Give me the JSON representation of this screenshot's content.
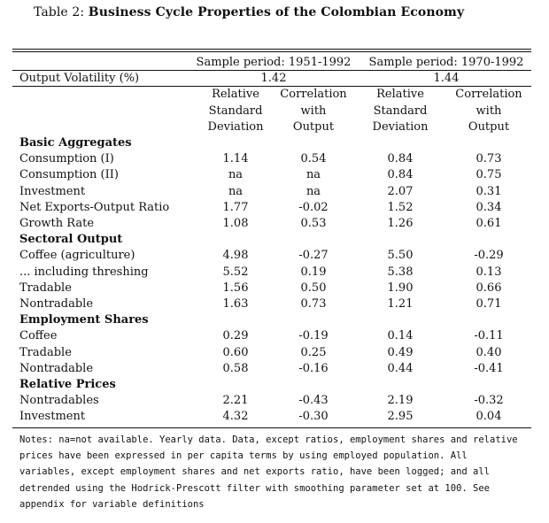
{
  "caption": {
    "label": "Table 2:",
    "title": "Business Cycle Properties of the Colombian Economy"
  },
  "header": {
    "period1": "Sample period: 1951-1992",
    "period2": "Sample period: 1970-1992",
    "volatility_label": "Output Volatility (%)",
    "volatility1": "1.42",
    "volatility2": "1.44",
    "col_rsd": [
      "Relative",
      "Standard",
      "Deviation"
    ],
    "col_corr": [
      "Correlation",
      "with",
      "Output"
    ]
  },
  "sections": [
    {
      "title": "Basic Aggregates",
      "rows": [
        [
          "Consumption (I)",
          "1.14",
          "0.54",
          "0.84",
          "0.73"
        ],
        [
          "Consumption (II)",
          "na",
          "na",
          "0.84",
          "0.75"
        ],
        [
          "Investment",
          "na",
          "na",
          "2.07",
          "0.31"
        ],
        [
          "Net Exports-Output Ratio",
          "1.77",
          "-0.02",
          "1.52",
          "0.34"
        ],
        [
          "Growth Rate",
          "1.08",
          "0.53",
          "1.26",
          "0.61"
        ]
      ]
    },
    {
      "title": "Sectoral Output",
      "rows": [
        [
          "Coffee (agriculture)",
          "4.98",
          "-0.27",
          "5.50",
          "-0.29"
        ],
        [
          "... including threshing",
          "5.52",
          "0.19",
          "5.38",
          "0.13"
        ],
        [
          "Tradable",
          "1.56",
          "0.50",
          "1.90",
          "0.66"
        ],
        [
          "Nontradable",
          "1.63",
          "0.73",
          "1.21",
          "0.71"
        ]
      ]
    },
    {
      "title": "Employment Shares",
      "rows": [
        [
          "Coffee",
          "0.29",
          "-0.19",
          "0.14",
          "-0.11"
        ],
        [
          "Tradable",
          "0.60",
          "0.25",
          "0.49",
          "0.40"
        ],
        [
          "Nontradable",
          "0.58",
          "-0.16",
          "0.44",
          "-0.41"
        ]
      ]
    },
    {
      "title": "Relative Prices",
      "rows": [
        [
          "Nontradables",
          "2.21",
          "-0.43",
          "2.19",
          "-0.32"
        ],
        [
          "Investment",
          "4.32",
          "-0.30",
          "2.95",
          "0.04"
        ]
      ]
    }
  ],
  "notes": "Notes: na=not available. Yearly data. Data, except ratios, employment shares and relative prices have been expressed in per capita terms by using employed population. All variables, except employment shares and net exports ratio, have been logged; and all detrended using the Hodrick-Prescott filter with smoothing parameter set at 100. See appendix for variable definitions"
}
